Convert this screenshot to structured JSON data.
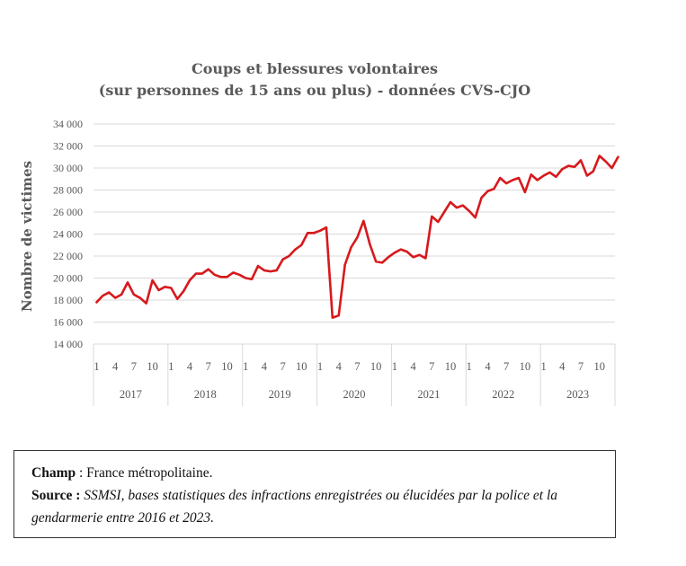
{
  "chart_data": {
    "type": "line",
    "title": [
      "Coups et blessures volontaires",
      "(sur personnes de 15 ans ou plus) - données CVS-CJO"
    ],
    "ylabel": "Nombre de victimes",
    "ylim": [
      14000,
      34000
    ],
    "yticks": [
      "14 000",
      "16 000",
      "18 000",
      "20 000",
      "22 000",
      "24 000",
      "26 000",
      "28 000",
      "30 000",
      "32 000",
      "34 000"
    ],
    "month_ticks": [
      "1",
      "4",
      "7",
      "10"
    ],
    "years": [
      "2017",
      "2018",
      "2019",
      "2020",
      "2021",
      "2022",
      "2023"
    ],
    "grid": true,
    "line_color": "#d7191c",
    "series": [
      {
        "values": [
          17800,
          18400,
          18700,
          18200,
          18500,
          19600,
          18500,
          18200,
          17700,
          19800,
          18900,
          19200,
          19100,
          18100,
          18800,
          19800,
          20400,
          20400,
          20800,
          20300,
          20100,
          20100,
          20500,
          20300,
          20000,
          19900,
          21100,
          20700,
          20600,
          20700,
          21700,
          22000,
          22600,
          23000,
          24100,
          24100,
          24300,
          24600,
          16400,
          16600,
          21200,
          22800,
          23700,
          25200,
          23100,
          21500,
          21400,
          21900,
          22300,
          22600,
          22400,
          21900,
          22100,
          21800,
          25600,
          25100,
          26000,
          26900,
          26400,
          26600,
          26100,
          25500,
          27300,
          27900,
          28100,
          29100,
          28600,
          28900,
          29100,
          27800,
          29400,
          28900,
          29300,
          29600,
          29200,
          29900,
          30200,
          30100,
          30700,
          29300,
          29700,
          31100,
          30600,
          30000,
          31000
        ]
      }
    ]
  },
  "note": {
    "champ_label": "Champ",
    "champ_text": " : France métropolitaine.",
    "source_label": "Source :",
    "source_text": " SSMSI, bases statistiques des infractions enregistrées ou élucidées par la police et la gendarmerie entre 2016 et 2023."
  }
}
